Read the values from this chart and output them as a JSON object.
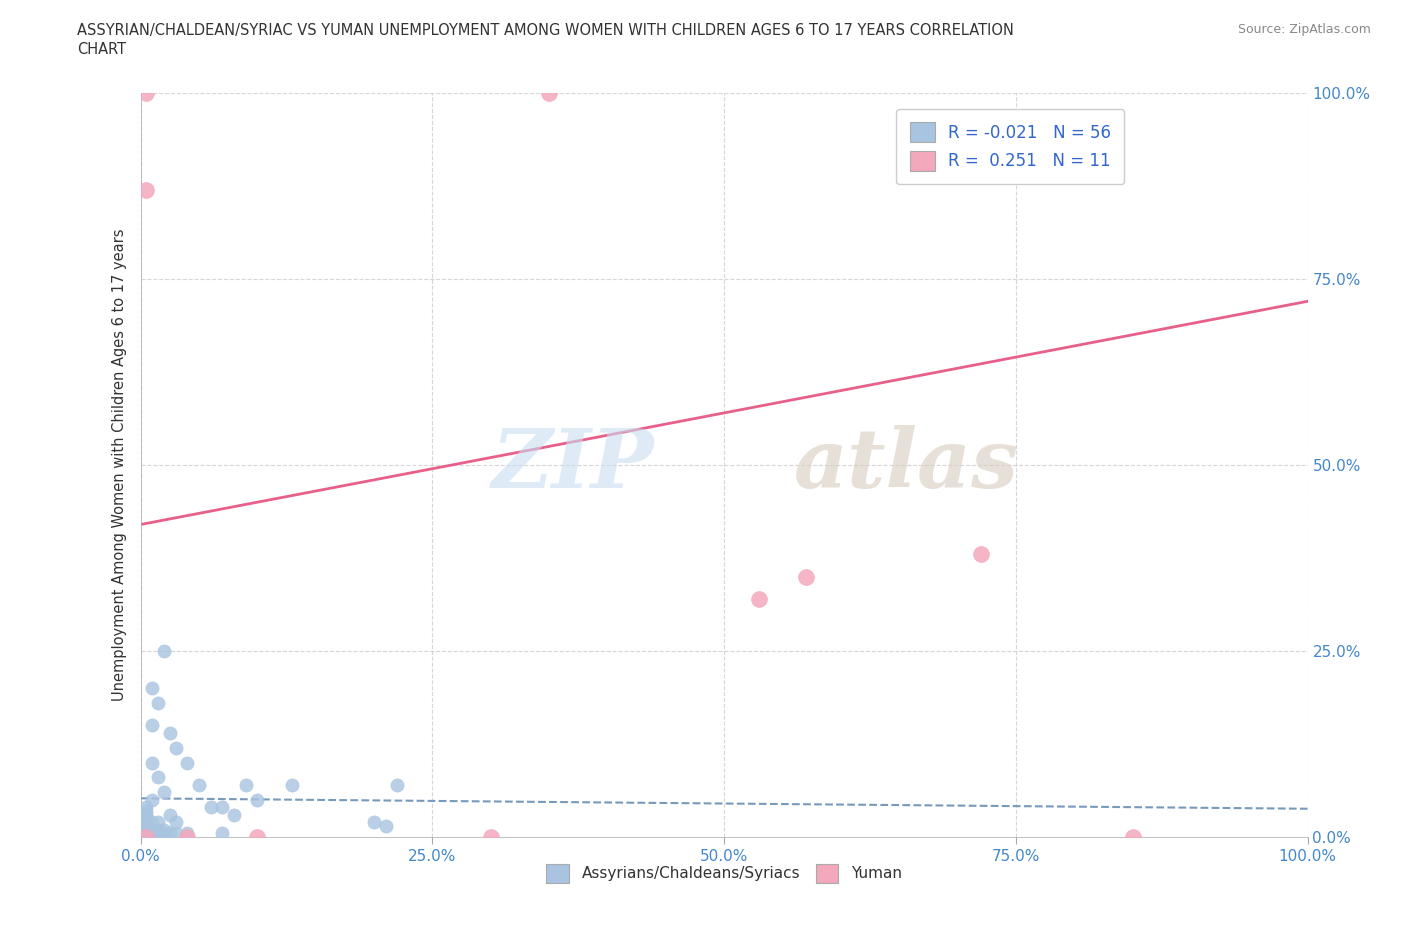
{
  "title_line1": "ASSYRIAN/CHALDEAN/SYRIAC VS YUMAN UNEMPLOYMENT AMONG WOMEN WITH CHILDREN AGES 6 TO 17 YEARS CORRELATION",
  "title_line2": "CHART",
  "source": "Source: ZipAtlas.com",
  "ylabel": "Unemployment Among Women with Children Ages 6 to 17 years",
  "xlim": [
    0.0,
    1.0
  ],
  "ylim": [
    0.0,
    1.0
  ],
  "xticks": [
    0.0,
    0.25,
    0.5,
    0.75,
    1.0
  ],
  "yticks": [
    0.0,
    0.25,
    0.5,
    0.75,
    1.0
  ],
  "xticklabels": [
    "0.0%",
    "25.0%",
    "50.0%",
    "75.0%",
    "100.0%"
  ],
  "yticklabels_right": [
    "0.0%",
    "25.0%",
    "50.0%",
    "75.0%",
    "100.0%"
  ],
  "blue_color": "#a8c4e0",
  "pink_color": "#f4a8bc",
  "blue_line_color": "#7799bb",
  "pink_line_color": "#e8608a",
  "tick_color": "#4488cc",
  "legend_R1": "-0.021",
  "legend_N1": "56",
  "legend_R2": "0.251",
  "legend_N2": "11",
  "blue_scatter_x": [
    0.005,
    0.005,
    0.005,
    0.005,
    0.005,
    0.005,
    0.005,
    0.005,
    0.005,
    0.01,
    0.01,
    0.01,
    0.01,
    0.01,
    0.01,
    0.01,
    0.015,
    0.015,
    0.015,
    0.015,
    0.015,
    0.02,
    0.02,
    0.02,
    0.02,
    0.025,
    0.025,
    0.025,
    0.03,
    0.03,
    0.03,
    0.04,
    0.04,
    0.05,
    0.06,
    0.07,
    0.07,
    0.08,
    0.09,
    0.1,
    0.13,
    0.2,
    0.21,
    0.22,
    0.005,
    0.005,
    0.005,
    0.005,
    0.005,
    0.005,
    0.005,
    0.005,
    0.01,
    0.01,
    0.01,
    0.01
  ],
  "blue_scatter_y": [
    0.005,
    0.01,
    0.015,
    0.02,
    0.025,
    0.03,
    0.035,
    0.04,
    0.005,
    0.005,
    0.01,
    0.02,
    0.05,
    0.1,
    0.15,
    0.2,
    0.005,
    0.01,
    0.02,
    0.08,
    0.18,
    0.005,
    0.01,
    0.06,
    0.25,
    0.005,
    0.03,
    0.14,
    0.005,
    0.02,
    0.12,
    0.005,
    0.1,
    0.07,
    0.04,
    0.005,
    0.04,
    0.03,
    0.07,
    0.05,
    0.07,
    0.02,
    0.015,
    0.07,
    0.005,
    0.005,
    0.005,
    0.005,
    0.005,
    0.005,
    0.005,
    0.005,
    0.005,
    0.005,
    0.005,
    0.005
  ],
  "pink_scatter_x": [
    0.005,
    0.005,
    0.35,
    0.005,
    0.72,
    0.53,
    0.57,
    0.3,
    0.85,
    0.04,
    0.1
  ],
  "pink_scatter_y": [
    1.0,
    0.87,
    1.0,
    0.0,
    0.38,
    0.32,
    0.35,
    0.0,
    0.0,
    0.0,
    0.0
  ],
  "blue_trend_x": [
    0.0,
    1.0
  ],
  "blue_trend_y": [
    0.052,
    0.038
  ],
  "pink_trend_x": [
    0.0,
    1.0
  ],
  "pink_trend_y": [
    0.42,
    0.72
  ]
}
